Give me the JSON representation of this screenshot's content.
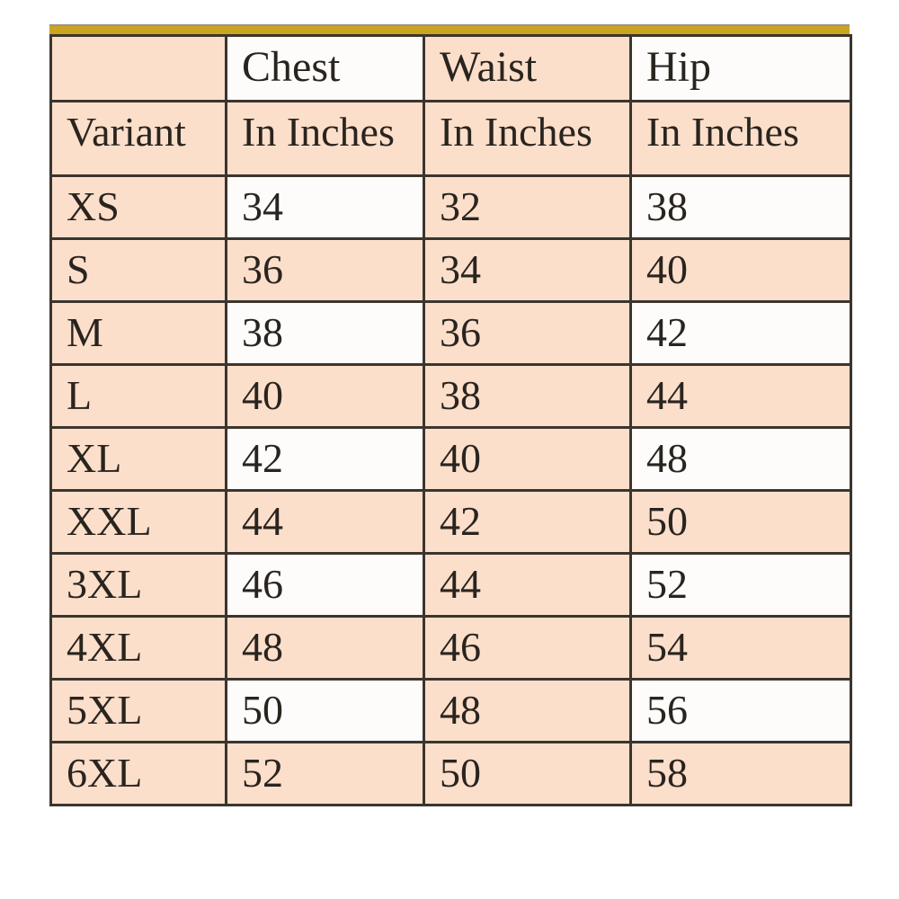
{
  "chart_data": {
    "type": "table",
    "title": "",
    "header_row_1": [
      "",
      "Chest",
      "Waist",
      "Hip"
    ],
    "header_row_2": [
      "Variant",
      "In Inches",
      "In Inches",
      "In Inches"
    ],
    "rows": [
      [
        "XS",
        "34",
        "32",
        "38"
      ],
      [
        "S",
        "36",
        "34",
        "40"
      ],
      [
        "M",
        "38",
        "36",
        "42"
      ],
      [
        "L",
        "40",
        "38",
        "44"
      ],
      [
        "XL",
        "42",
        "40",
        "48"
      ],
      [
        "XXL",
        "44",
        "42",
        "50"
      ],
      [
        "3XL",
        "46",
        "44",
        "52"
      ],
      [
        "4XL",
        "48",
        "46",
        "54"
      ],
      [
        "5XL",
        "50",
        "48",
        "56"
      ],
      [
        "6XL",
        "52",
        "50",
        "58"
      ]
    ],
    "layout": {
      "grid": "on",
      "row_shading": "columns Chest and Hip alternate white on rows XS, M, XL, 3XL, 5XL and header row 1; all other cells peach"
    }
  },
  "colors": {
    "cell_peach": "#fbdfcb",
    "cell_white": "#fdfcfb",
    "grid_border": "#3b352e",
    "top_accent_band": "#cda41f",
    "text": "#2a241f",
    "page_background": "#ffffff"
  }
}
